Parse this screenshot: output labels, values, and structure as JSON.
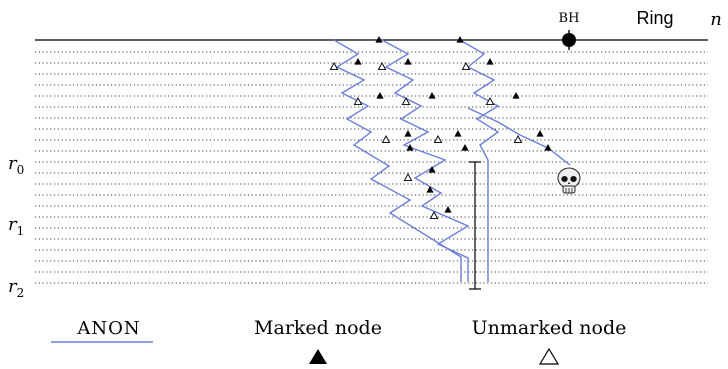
{
  "labels": {
    "bh": "BH",
    "ring": "Ring",
    "n": "n",
    "r0": "r",
    "r0_sub": "0",
    "r1": "r",
    "r1_sub": "1",
    "r2": "r",
    "r2_sub": "2"
  },
  "legend": {
    "anon": "ANON",
    "marked": "Marked node",
    "unmarked": "Unmarked node"
  },
  "colors": {
    "path": "#6b7fdc",
    "ink": "#000000"
  },
  "icons": {
    "black_hole": "filled-circle",
    "skull": "skull-icon",
    "marked": "filled-triangle",
    "unmarked": "hollow-triangle"
  }
}
